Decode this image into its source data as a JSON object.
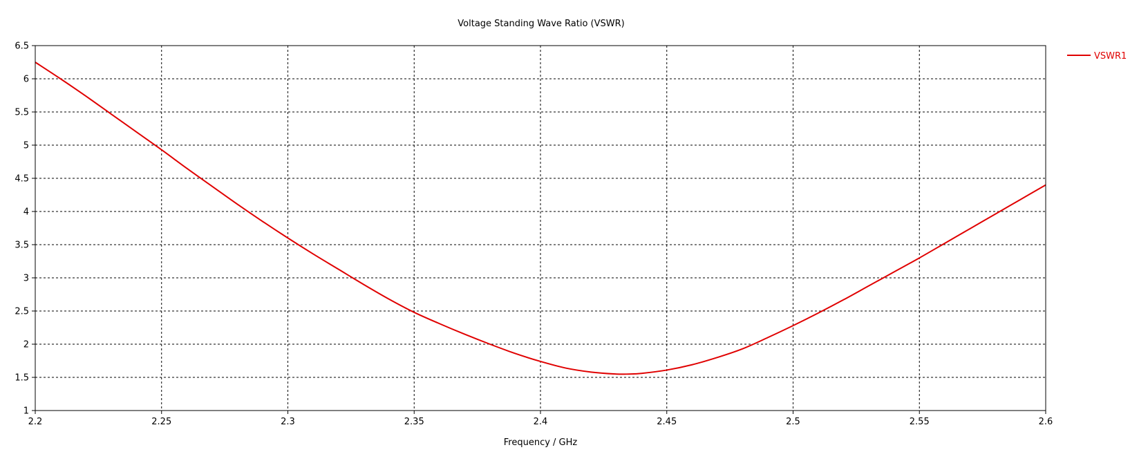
{
  "chart_data": {
    "type": "line",
    "title": "Voltage Standing Wave Ratio (VSWR)",
    "xlabel": "Frequency / GHz",
    "ylabel": "",
    "xlim": [
      2.2,
      2.6
    ],
    "ylim": [
      1,
      6.5
    ],
    "xticks": [
      "2.2",
      "2.25",
      "2.3",
      "2.35",
      "2.4",
      "2.45",
      "2.5",
      "2.55",
      "2.6"
    ],
    "yticks": [
      "1",
      "1.5",
      "2",
      "2.5",
      "3",
      "3.5",
      "4",
      "4.5",
      "5",
      "5.5",
      "6",
      "6.5"
    ],
    "grid": true,
    "legend_position": "right",
    "series": [
      {
        "name": "VSWR1",
        "color": "#e00000",
        "x": [
          2.2,
          2.21,
          2.22,
          2.23,
          2.24,
          2.25,
          2.26,
          2.27,
          2.28,
          2.29,
          2.3,
          2.31,
          2.32,
          2.33,
          2.34,
          2.35,
          2.36,
          2.37,
          2.38,
          2.39,
          2.4,
          2.41,
          2.42,
          2.43,
          2.435,
          2.44,
          2.45,
          2.46,
          2.47,
          2.48,
          2.49,
          2.5,
          2.51,
          2.52,
          2.53,
          2.54,
          2.55,
          2.56,
          2.57,
          2.58,
          2.59,
          2.6
        ],
        "y": [
          6.25,
          6.0,
          5.74,
          5.47,
          5.2,
          4.93,
          4.65,
          4.38,
          4.11,
          3.85,
          3.6,
          3.36,
          3.13,
          2.9,
          2.68,
          2.48,
          2.31,
          2.15,
          2.0,
          1.86,
          1.74,
          1.64,
          1.58,
          1.55,
          1.55,
          1.56,
          1.61,
          1.69,
          1.8,
          1.93,
          2.1,
          2.28,
          2.47,
          2.67,
          2.88,
          3.09,
          3.3,
          3.52,
          3.74,
          3.96,
          4.18,
          4.4
        ]
      }
    ]
  }
}
